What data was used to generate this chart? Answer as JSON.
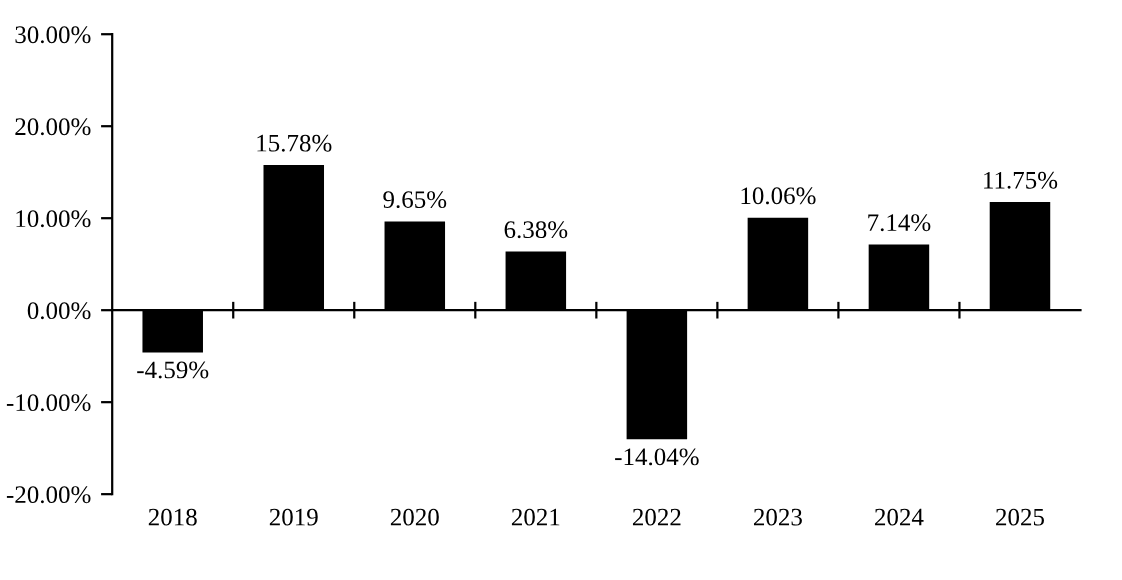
{
  "chart_data": {
    "type": "bar",
    "categories": [
      "2018",
      "2019",
      "2020",
      "2021",
      "2022",
      "2023",
      "2024",
      "2025"
    ],
    "values": [
      -4.59,
      15.78,
      9.65,
      6.38,
      -14.04,
      10.06,
      7.14,
      11.75
    ],
    "value_labels": [
      "-4.59%",
      "15.78%",
      "9.65%",
      "6.38%",
      "-14.04%",
      "10.06%",
      "7.14%",
      "11.75%"
    ],
    "color": "#000000",
    "ylim": [
      -20,
      30
    ],
    "yticks": [
      {
        "value": -20,
        "label": "-20.00%"
      },
      {
        "value": -10,
        "label": "-10.00%"
      },
      {
        "value": 0,
        "label": "0.00%"
      },
      {
        "value": 10,
        "label": "10.00%"
      },
      {
        "value": 20,
        "label": "20.00%"
      },
      {
        "value": 30,
        "label": "30.00%"
      }
    ],
    "legend": false
  }
}
